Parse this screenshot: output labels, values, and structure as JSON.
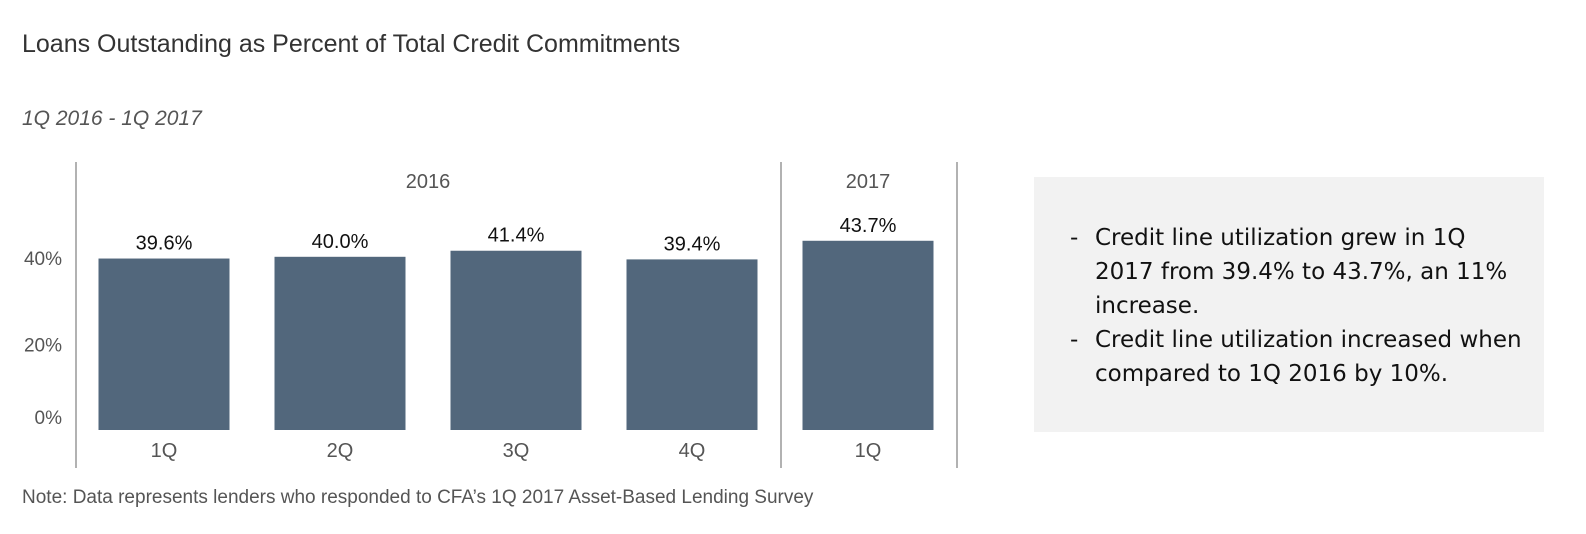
{
  "title": "Loans Outstanding as Percent of Total Credit Commitments",
  "subtitle": "1Q 2016 - 1Q 2017",
  "note": "Note: Data represents lenders who responded to CFA’s 1Q 2017 Asset-Based Lending Survey",
  "colors": {
    "bar": "#52677c",
    "axis": "#999999",
    "tick_text": "#555555",
    "label_text": "#111111"
  },
  "callout": {
    "bullets": [
      "Credit line utilization grew in 1Q 2017 from 39.4% to 43.7%, an 11% increase.",
      "Credit line utilization increased when compared to 1Q 2016 by 10%."
    ]
  },
  "chart_data": {
    "type": "bar",
    "title": "",
    "xlabel": "",
    "ylabel": "",
    "groups": [
      {
        "label": "2016",
        "categories": [
          "1Q",
          "2Q",
          "3Q",
          "4Q"
        ]
      },
      {
        "label": "2017",
        "categories": [
          "1Q"
        ]
      }
    ],
    "categories": [
      "1Q",
      "2Q",
      "3Q",
      "4Q",
      "1Q"
    ],
    "values": [
      39.6,
      40.0,
      41.4,
      39.4,
      43.7
    ],
    "value_labels": [
      "39.6%",
      "40.0%",
      "41.4%",
      "39.4%",
      "43.7%"
    ],
    "y_ticks": [
      0,
      20,
      40
    ],
    "y_tick_labels": [
      "0%",
      "20%",
      "40%"
    ],
    "ylim": [
      0,
      50
    ],
    "grid": false,
    "legend": "none"
  }
}
